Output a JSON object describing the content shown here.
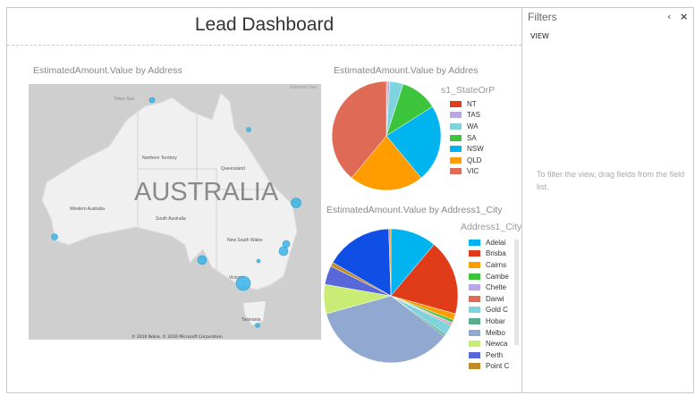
{
  "header": {
    "title": "Lead Dashboard"
  },
  "map_visual": {
    "title": "EstimatedAmount.Value by Address",
    "country_label": "AUSTRALIA",
    "labels": [
      "Timor Sea",
      "Solomon Sea",
      "Northern Territory",
      "Queensland",
      "Western Australia",
      "South Australia",
      "New South Wales",
      "Victoria",
      "Tasmania"
    ],
    "copyright": "© 2016 Nokia, © 2016 Microsoft Corporation",
    "bubble_color": "#3bb3e6"
  },
  "state_chart": {
    "title": "EstimatedAmount.Value by Addres",
    "legend_title": "s1_StateOrP"
  },
  "city_chart": {
    "title": "EstimatedAmount.Value by Address1_City",
    "legend_title": "Address1_City"
  },
  "filters": {
    "title": "Filters",
    "section": "VIEW",
    "hint": "To filter the view, drag fields from the field list.",
    "collapse_icon": "chevron-left-icon",
    "close_icon": "close-icon"
  },
  "chart_data": [
    {
      "type": "pie",
      "title": "EstimatedAmount.Value by Addres",
      "legend_title": "s1_StateOrP",
      "legend": "right",
      "categories": [
        "NT",
        "TAS",
        "WA",
        "SA",
        "NSW",
        "QLD",
        "VIC"
      ],
      "values": [
        0.3,
        0.7,
        4,
        11,
        23,
        22,
        39
      ],
      "colors": [
        "#e03c1a",
        "#b9a6e6",
        "#7fd3dc",
        "#3cc43c",
        "#00b4f0",
        "#ff9c00",
        "#df6a55"
      ]
    },
    {
      "type": "pie",
      "title": "EstimatedAmount.Value by Address1_City",
      "legend_title": "Address1_City",
      "legend": "right",
      "categories": [
        "Adelai",
        "Brisba",
        "Cairns",
        "Cambe",
        "Chelte",
        "Darwi",
        "Gold C",
        "Hobar",
        "Melbo",
        "Newca",
        "Perth",
        "Point C",
        "",
        ""
      ],
      "values": [
        11,
        18,
        1.5,
        0.7,
        0.4,
        0.3,
        2.5,
        0.5,
        35,
        7,
        4.5,
        1,
        16,
        0.5
      ],
      "colors": [
        "#00b4f0",
        "#e03c1a",
        "#ff9c00",
        "#3cc43c",
        "#b9a6e6",
        "#df6a55",
        "#7fd3dc",
        "#5aac8c",
        "#91a8d0",
        "#c8ec74",
        "#5868d8",
        "#bf8c28",
        "#0f4fe6",
        "#f0a020"
      ]
    }
  ]
}
